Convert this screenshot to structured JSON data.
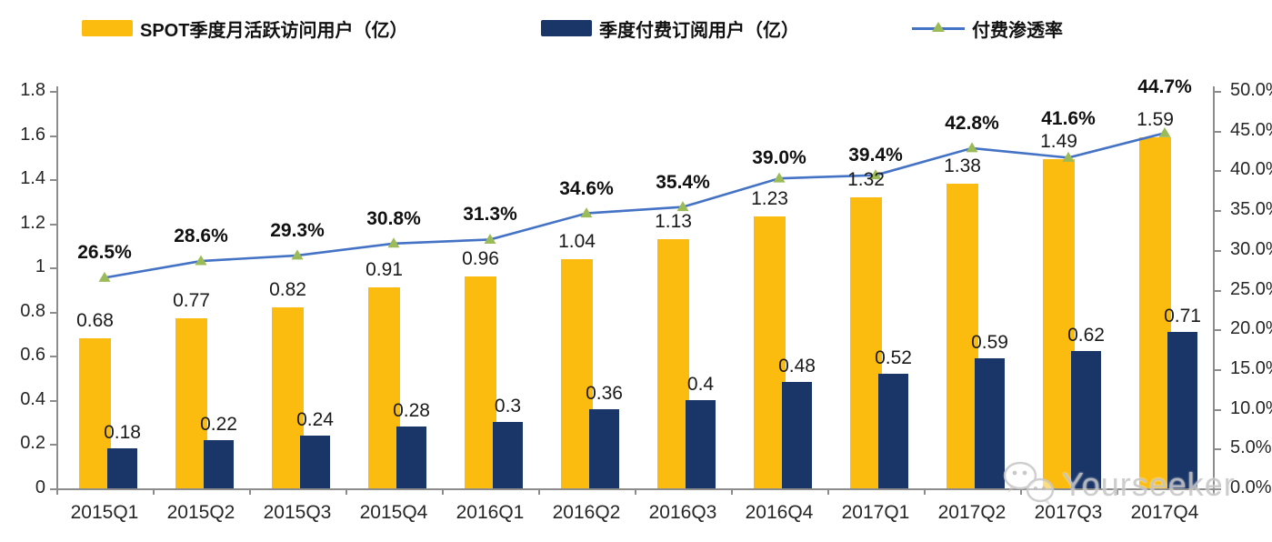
{
  "legend": {
    "items": [
      {
        "label": "SPOT季度月活跃访问用户（亿）",
        "swatch": "bar",
        "color": "#FBBC0F"
      },
      {
        "label": "季度付费订阅用户（亿）",
        "swatch": "bar",
        "color": "#1A3668"
      },
      {
        "label": "付费渗透率",
        "swatch": "line-marker",
        "line_color": "#4472C4",
        "marker_color": "#9BBB59"
      }
    ]
  },
  "watermark": {
    "text": "Yourseeker",
    "icon": "wechat-icon",
    "color": "#C7C7C7"
  },
  "chart_data": {
    "type": "bar",
    "subtype": "grouped-bars-with-line-overlay",
    "title": "",
    "xlabel": "",
    "ylabel_left": "",
    "ylabel_right": "",
    "grid": false,
    "legend_position": "top",
    "background": "#ffffff",
    "categories": [
      "2015Q1",
      "2015Q2",
      "2015Q3",
      "2015Q4",
      "2016Q1",
      "2016Q2",
      "2016Q3",
      "2016Q4",
      "2017Q1",
      "2017Q2",
      "2017Q3",
      "2017Q4"
    ],
    "series": [
      {
        "name": "SPOT季度月活跃访问用户（亿）",
        "type": "bar",
        "axis": "left",
        "color": "#FBBC0F",
        "values": [
          0.68,
          0.77,
          0.82,
          0.91,
          0.96,
          1.04,
          1.13,
          1.23,
          1.32,
          1.38,
          1.49,
          1.59
        ],
        "labels": [
          "0.68",
          "0.77",
          "0.82",
          "0.91",
          "0.96",
          "1.04",
          "1.13",
          "1.23",
          "1.32",
          "1.38",
          "1.49",
          "1.59"
        ]
      },
      {
        "name": "季度付费订阅用户（亿）",
        "type": "bar",
        "axis": "left",
        "color": "#1A3668",
        "values": [
          0.18,
          0.22,
          0.24,
          0.28,
          0.3,
          0.36,
          0.4,
          0.48,
          0.52,
          0.59,
          0.62,
          0.71
        ],
        "labels": [
          "0.18",
          "0.22",
          "0.24",
          "0.28",
          "0.3",
          "0.36",
          "0.4",
          "0.48",
          "0.52",
          "0.59",
          "0.62",
          "0.71"
        ]
      },
      {
        "name": "付费渗透率",
        "type": "line",
        "axis": "right",
        "color": "#4472C4",
        "marker": "triangle",
        "marker_color": "#9BBB59",
        "values": [
          26.5,
          28.6,
          29.3,
          30.8,
          31.3,
          34.6,
          35.4,
          39.0,
          39.4,
          42.8,
          41.6,
          44.7
        ],
        "labels": [
          "26.5%",
          "28.6%",
          "29.3%",
          "30.8%",
          "31.3%",
          "34.6%",
          "35.4%",
          "39.0%",
          "39.4%",
          "42.8%",
          "41.6%",
          "44.7%"
        ]
      }
    ],
    "left_axis": {
      "min": 0,
      "max": 1.8,
      "ticks": [
        "1.8",
        "1.6",
        "1.4",
        "1.2",
        "1",
        "0.8",
        "0.6",
        "0.4",
        "0.2",
        "0"
      ]
    },
    "right_axis": {
      "min": 0,
      "max": 50,
      "ticks": [
        "50.0%",
        "45.0%",
        "40.0%",
        "35.0%",
        "30.0%",
        "25.0%",
        "20.0%",
        "15.0%",
        "10.0%",
        "5.0%",
        "0.0%"
      ]
    }
  }
}
